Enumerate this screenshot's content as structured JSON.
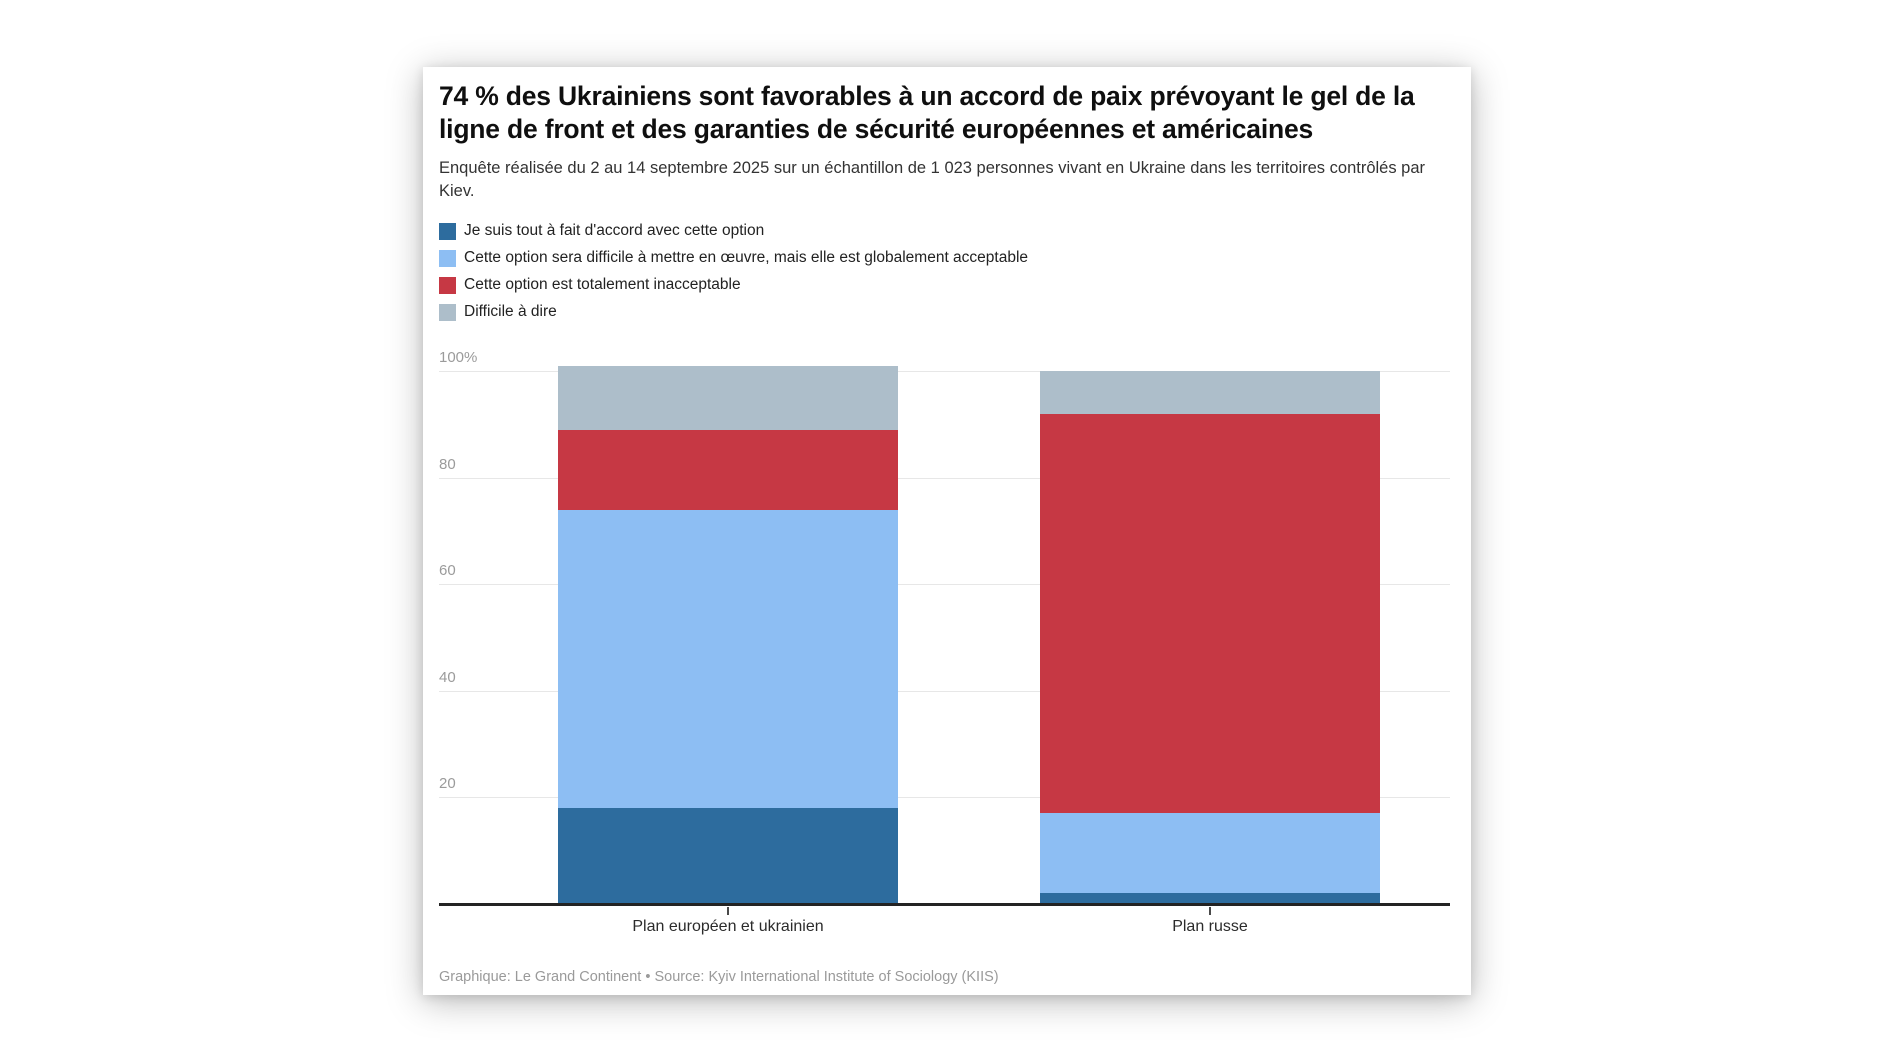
{
  "header": {
    "title": "74 % des Ukrainiens sont favorables à un accord de paix prévoyant le gel de la ligne de front et des garanties de sécurité européennes et américaines",
    "subtitle": "Enquête réalisée du 2 au 14 septembre 2025 sur un échantillon de 1 023 personnes vivant en Ukraine dans les territoires contrôlés par Kiev."
  },
  "chart_data": {
    "type": "bar",
    "stacked": true,
    "unit": "%",
    "categories": [
      "Plan européen et ukrainien",
      "Plan russe"
    ],
    "series": [
      {
        "name": "Je suis tout à fait d'accord avec cette option",
        "color": "#2d6c9e",
        "values": [
          18,
          2
        ]
      },
      {
        "name": "Cette option sera difficile à mettre en œuvre, mais elle est globalement acceptable",
        "color": "#8dbef3",
        "values": [
          56,
          15
        ]
      },
      {
        "name": "Cette option est totalement inacceptable",
        "color": "#c63844",
        "values": [
          15,
          75
        ]
      },
      {
        "name": "Difficile à dire",
        "color": "#adbeca",
        "values": [
          12,
          8
        ]
      }
    ],
    "y_axis": {
      "min": 0,
      "max": 100,
      "grid": true,
      "ticks": [
        {
          "value": 100,
          "label": "100%"
        },
        {
          "value": 80,
          "label": "80"
        },
        {
          "value": 60,
          "label": "60"
        },
        {
          "value": 40,
          "label": "40"
        },
        {
          "value": 20,
          "label": "20"
        }
      ]
    },
    "legend_position": "top"
  },
  "footer": {
    "credit": "Graphique: Le Grand Continent • Source: Kyiv International Institute of Sociology (KIIS)"
  },
  "colors": {
    "page_bg": "#ffffff",
    "card_bg": "#ffffff",
    "axis": "#232323",
    "gridline": "#e7e7e7",
    "tick_label": "#9b9b9b",
    "category_label": "#2b2b2b",
    "footer_text": "#9a9a9a"
  }
}
